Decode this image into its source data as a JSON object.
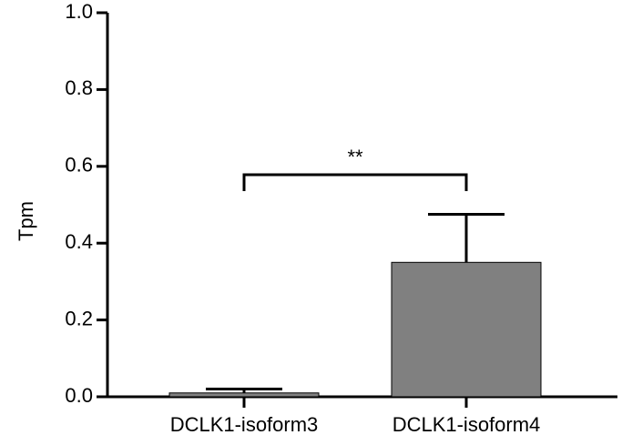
{
  "chart_data": {
    "type": "bar",
    "title": "",
    "xlabel": "",
    "ylabel": "Tpm",
    "ylim": [
      0,
      1.0
    ],
    "yticks": [
      "0.0",
      "0.2",
      "0.4",
      "0.6",
      "0.8",
      "1.0"
    ],
    "categories": [
      "DCLK1-isoform3",
      "DCLK1-isoform4"
    ],
    "values": [
      0.01,
      0.35
    ],
    "error_upper": [
      0.02,
      0.475
    ],
    "colors": {
      "bar": "#808080",
      "axis": "#000000"
    },
    "significance": {
      "between": [
        0,
        1
      ],
      "label": "**"
    },
    "grid": false
  }
}
